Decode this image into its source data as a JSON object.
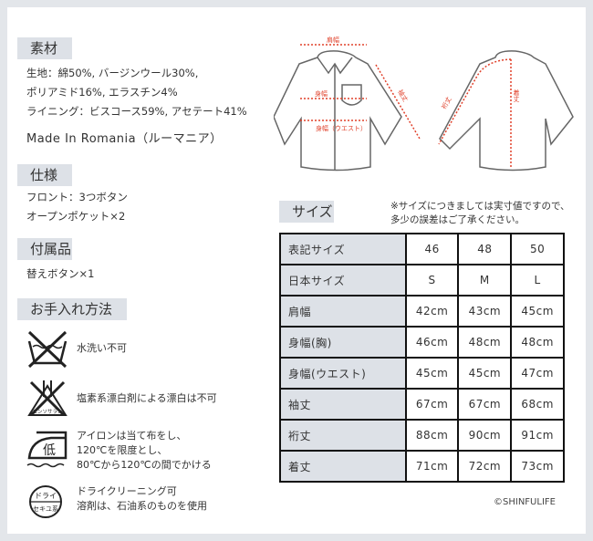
{
  "material": {
    "heading": "素材",
    "lines": [
      "生地：綿50%, バージンウール30%,",
      "ポリアミド16%, エラスチン4%",
      "ライニング：ビスコース59%, アセテート41%"
    ],
    "origin": "Made In Romania（ルーマニア）"
  },
  "spec": {
    "heading": "仕様",
    "lines": [
      "フロント：3つボタン",
      "オープンポケット×2"
    ]
  },
  "accessories": {
    "heading": "付属品",
    "lines": [
      "替えボタン×1"
    ]
  },
  "care": {
    "heading": "お手入れ方法",
    "items": [
      {
        "icon": "no-wash-icon",
        "lines": [
          "水洗い不可"
        ]
      },
      {
        "icon": "no-chlorine-bleach-icon",
        "icon_text": "エンソサラシ",
        "lines": [
          "塩素系漂白剤による漂白は不可"
        ]
      },
      {
        "icon": "iron-low-icon",
        "icon_text": "低",
        "lines": [
          "アイロンは当て布をし、",
          "120℃を限度とし、",
          "80℃から120℃の間でかける"
        ]
      },
      {
        "icon": "dry-clean-petroleum-icon",
        "icon_text": [
          "ドライ",
          "セキユ系"
        ],
        "lines": [
          "ドライクリーニング可",
          "溶剤は、石油系のものを使用"
        ]
      }
    ]
  },
  "diagram": {
    "labels": {
      "shoulder": "肩幅",
      "chest": "身幅",
      "waist": "身幅（ウエスト）",
      "sleeve": "袖丈",
      "yuki": "裄丈",
      "length": "着丈"
    },
    "accent": "#e0402a"
  },
  "size": {
    "heading": "サイズ",
    "note": [
      "※サイズにつきましては実寸値ですので、",
      "多少の誤差はご了承ください。"
    ],
    "rows": [
      [
        "表記サイズ",
        "46",
        "48",
        "50"
      ],
      [
        "日本サイズ",
        "S",
        "M",
        "L"
      ],
      [
        "肩幅",
        "42cm",
        "43cm",
        "45cm"
      ],
      [
        "身幅(胸)",
        "46cm",
        "48cm",
        "48cm"
      ],
      [
        "身幅(ウエスト)",
        "45cm",
        "45cm",
        "47cm"
      ],
      [
        "袖丈",
        "67cm",
        "67cm",
        "68cm"
      ],
      [
        "裄丈",
        "88cm",
        "90cm",
        "91cm"
      ],
      [
        "着丈",
        "71cm",
        "72cm",
        "73cm"
      ]
    ]
  },
  "copyright": "©SHINFULIFE"
}
